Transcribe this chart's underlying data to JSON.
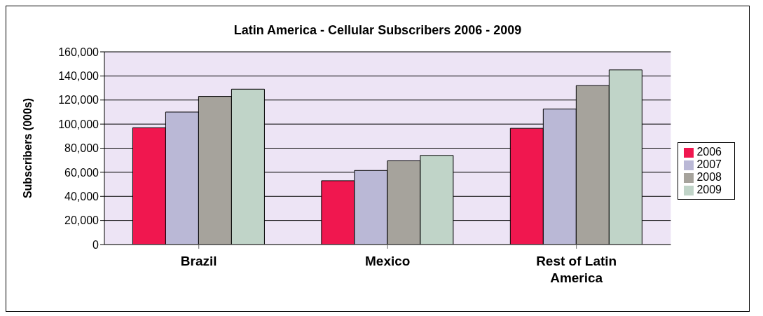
{
  "chart_data": {
    "type": "bar",
    "title": "Latin America - Cellular Subscribers 2006 - 2009",
    "ylabel": "Subscribers (000s)",
    "categories": [
      "Brazil",
      "Mexico",
      "Rest of Latin America"
    ],
    "series": [
      {
        "name": "2006",
        "color": "#f0174f",
        "values": [
          97000,
          53000,
          96500
        ]
      },
      {
        "name": "2007",
        "color": "#bab8d6",
        "values": [
          110000,
          61500,
          112500
        ]
      },
      {
        "name": "2008",
        "color": "#a6a39c",
        "values": [
          123000,
          69500,
          132000
        ]
      },
      {
        "name": "2009",
        "color": "#c0d4c8",
        "values": [
          129000,
          74000,
          145000
        ]
      }
    ],
    "ylim": [
      0,
      160000
    ],
    "yticks": [
      0,
      {
        "value": 20000,
        "label": "20,000"
      },
      {
        "value": 40000,
        "label": "40,000"
      },
      {
        "value": 60000,
        "label": "60,000"
      },
      {
        "value": 80000,
        "label": "80,000"
      },
      {
        "value": 100000,
        "label": "100,000"
      },
      {
        "value": 120000,
        "label": "120,000"
      },
      {
        "value": 140000,
        "label": "140,000"
      },
      {
        "value": 160000,
        "label": "160,000"
      }
    ],
    "grid": "y",
    "legend": "right"
  }
}
